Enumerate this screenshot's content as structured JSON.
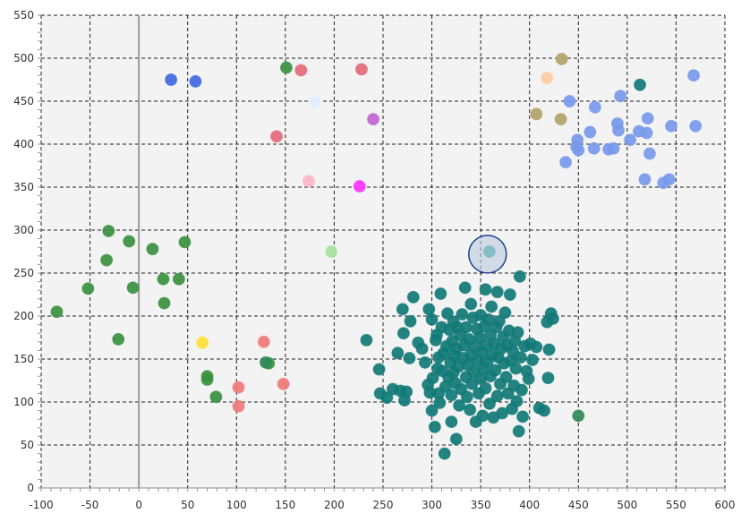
{
  "chart_data": {
    "type": "scatter",
    "title": "",
    "xlabel": "",
    "ylabel": "",
    "xlim": [
      -100,
      600
    ],
    "ylim": [
      0,
      550
    ],
    "x_ticks": [
      -100,
      -50,
      0,
      50,
      100,
      150,
      200,
      250,
      300,
      350,
      400,
      450,
      500,
      550,
      600
    ],
    "y_ticks": [
      0,
      50,
      100,
      150,
      200,
      250,
      300,
      350,
      400,
      450,
      500,
      550
    ],
    "grid": true,
    "grid_style": "dashed",
    "background": "#f3f3f3",
    "zero_line": "x",
    "highlight": {
      "x": 357,
      "y": 272,
      "color": "#1f3f8f",
      "fill": "#b9cce0"
    },
    "series": [
      {
        "color": "#3a9140",
        "points": [
          [
            -84,
            205
          ],
          [
            -52,
            232
          ],
          [
            -33,
            265
          ],
          [
            -31,
            299
          ],
          [
            -21,
            173
          ],
          [
            -10,
            287
          ],
          [
            -6,
            233
          ],
          [
            14,
            278
          ],
          [
            25,
            243
          ],
          [
            26,
            215
          ],
          [
            41,
            243
          ],
          [
            47,
            286
          ],
          [
            70,
            130
          ],
          [
            70,
            126
          ],
          [
            79,
            106
          ],
          [
            133,
            145
          ],
          [
            151,
            489
          ]
        ]
      },
      {
        "color": "#117a77",
        "points": [
          [
            233,
            172
          ],
          [
            246,
            138
          ],
          [
            247,
            110
          ],
          [
            254,
            105
          ],
          [
            260,
            115
          ],
          [
            265,
            157
          ],
          [
            268,
            113
          ],
          [
            270,
            208
          ],
          [
            271,
            180
          ],
          [
            272,
            102
          ],
          [
            274,
            112
          ],
          [
            277,
            151
          ],
          [
            278,
            194
          ],
          [
            281,
            222
          ],
          [
            286,
            169
          ],
          [
            290,
            162
          ],
          [
            293,
            146
          ],
          [
            296,
            120
          ],
          [
            297,
            208
          ],
          [
            298,
            111
          ],
          [
            300,
            90
          ],
          [
            300,
            196
          ],
          [
            301,
            128
          ],
          [
            303,
            71
          ],
          [
            304,
            172
          ],
          [
            305,
            178
          ],
          [
            306,
            139
          ],
          [
            307,
            110
          ],
          [
            307,
            152
          ],
          [
            308,
            99
          ],
          [
            309,
            226
          ],
          [
            310,
            187
          ],
          [
            311,
            136
          ],
          [
            312,
            157
          ],
          [
            313,
            40
          ],
          [
            314,
            118
          ],
          [
            315,
            165
          ],
          [
            316,
            203
          ],
          [
            317,
            129
          ],
          [
            318,
            184
          ],
          [
            319,
            146
          ],
          [
            320,
            77
          ],
          [
            320,
            108
          ],
          [
            321,
            171
          ],
          [
            322,
            193
          ],
          [
            322,
            134
          ],
          [
            323,
            154
          ],
          [
            324,
            122
          ],
          [
            325,
            162
          ],
          [
            325,
            57
          ],
          [
            326,
            187
          ],
          [
            327,
            141
          ],
          [
            328,
            96
          ],
          [
            329,
            178
          ],
          [
            330,
            115
          ],
          [
            331,
            202
          ],
          [
            332,
            151
          ],
          [
            333,
            166
          ],
          [
            334,
            233
          ],
          [
            335,
            129
          ],
          [
            335,
            187
          ],
          [
            336,
            106
          ],
          [
            337,
            143
          ],
          [
            338,
            173
          ],
          [
            339,
            91
          ],
          [
            340,
            155
          ],
          [
            340,
            214
          ],
          [
            341,
            121
          ],
          [
            342,
            198
          ],
          [
            343,
            135
          ],
          [
            344,
            164
          ],
          [
            345,
            77
          ],
          [
            346,
            185
          ],
          [
            347,
            148
          ],
          [
            348,
            110
          ],
          [
            349,
            175
          ],
          [
            350,
            127
          ],
          [
            350,
            201
          ],
          [
            351,
            158
          ],
          [
            352,
            84
          ],
          [
            353,
            139
          ],
          [
            354,
            188
          ],
          [
            355,
            231
          ],
          [
            355,
            116
          ],
          [
            356,
            166
          ],
          [
            357,
            147
          ],
          [
            358,
            196
          ],
          [
            359,
            98
          ],
          [
            360,
            178
          ],
          [
            360,
            130
          ],
          [
            361,
            211
          ],
          [
            362,
            155
          ],
          [
            363,
            82
          ],
          [
            364,
            168
          ],
          [
            365,
            137
          ],
          [
            366,
            187
          ],
          [
            367,
            228
          ],
          [
            367,
            107
          ],
          [
            368,
            152
          ],
          [
            369,
            194
          ],
          [
            370,
            121
          ],
          [
            371,
            162
          ],
          [
            372,
            87
          ],
          [
            373,
            176
          ],
          [
            374,
            145
          ],
          [
            375,
            204
          ],
          [
            376,
            129
          ],
          [
            377,
            166
          ],
          [
            378,
            110
          ],
          [
            379,
            183
          ],
          [
            380,
            225
          ],
          [
            381,
            148
          ],
          [
            382,
            92
          ],
          [
            383,
            159
          ],
          [
            384,
            119
          ],
          [
            385,
            171
          ],
          [
            386,
            139
          ],
          [
            387,
            101
          ],
          [
            388,
            181
          ],
          [
            389,
            66
          ],
          [
            390,
            246
          ],
          [
            391,
            152
          ],
          [
            392,
            114
          ],
          [
            393,
            83
          ],
          [
            395,
            165
          ],
          [
            397,
            136
          ],
          [
            399,
            127
          ],
          [
            401,
            168
          ],
          [
            403,
            149
          ],
          [
            407,
            164
          ],
          [
            410,
            93
          ],
          [
            415,
            90
          ],
          [
            418,
            193
          ],
          [
            419,
            128
          ],
          [
            420,
            161
          ],
          [
            422,
            203
          ],
          [
            424,
            197
          ],
          [
            513,
            469
          ]
        ]
      },
      {
        "color": "#7899ea",
        "points": [
          [
            437,
            379
          ],
          [
            441,
            450
          ],
          [
            448,
            397
          ],
          [
            449,
            405
          ],
          [
            450,
            393
          ],
          [
            462,
            414
          ],
          [
            466,
            395
          ],
          [
            467,
            443
          ],
          [
            481,
            394
          ],
          [
            486,
            395
          ],
          [
            490,
            424
          ],
          [
            491,
            416
          ],
          [
            493,
            456
          ],
          [
            503,
            405
          ],
          [
            512,
            415
          ],
          [
            518,
            359
          ],
          [
            520,
            413
          ],
          [
            521,
            430
          ],
          [
            523,
            389
          ],
          [
            537,
            355
          ],
          [
            543,
            359
          ],
          [
            545,
            421
          ],
          [
            568,
            480
          ],
          [
            570,
            421
          ]
        ]
      },
      {
        "color": "#4169e1",
        "points": [
          [
            33,
            475
          ],
          [
            58,
            473
          ]
        ]
      },
      {
        "color": "#e46a78",
        "points": [
          [
            141,
            409
          ],
          [
            166,
            486
          ],
          [
            228,
            487
          ]
        ]
      },
      {
        "color": "#f07a78",
        "points": [
          [
            102,
            117
          ],
          [
            102,
            95
          ],
          [
            128,
            170
          ],
          [
            148,
            121
          ]
        ]
      },
      {
        "color": "#b3a268",
        "points": [
          [
            407,
            435
          ],
          [
            432,
            429
          ],
          [
            433,
            499
          ]
        ]
      },
      {
        "color": "#ffcba0",
        "points": [
          [
            418,
            477
          ]
        ]
      },
      {
        "color": "#c066d4",
        "points": [
          [
            240,
            429
          ]
        ]
      },
      {
        "color": "#ff33ff",
        "points": [
          [
            226,
            351
          ]
        ]
      },
      {
        "color": "#ffb6c8",
        "points": [
          [
            174,
            357
          ]
        ]
      },
      {
        "color": "#a6e3a0",
        "points": [
          [
            197,
            275
          ]
        ]
      },
      {
        "color": "#ffe033",
        "points": [
          [
            65,
            169
          ]
        ]
      },
      {
        "color": "#2e8b57",
        "points": [
          [
            130,
            146
          ],
          [
            450,
            84
          ]
        ]
      },
      {
        "color": "#dff0ff",
        "points": [
          [
            180,
            449
          ]
        ]
      },
      {
        "color": "#2a9e9a",
        "points": [
          [
            359,
            275
          ]
        ]
      }
    ]
  }
}
